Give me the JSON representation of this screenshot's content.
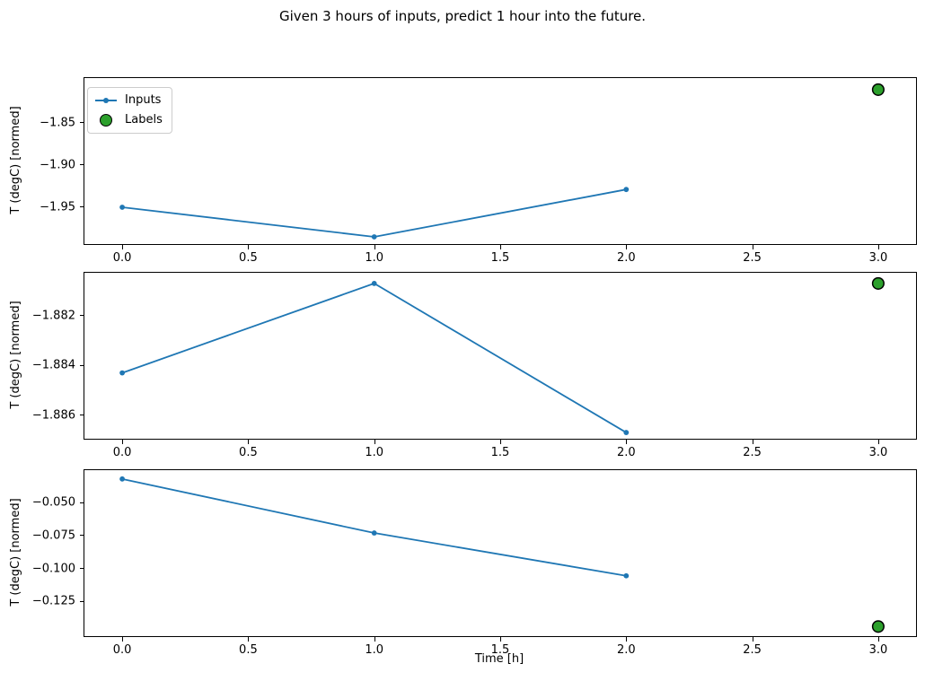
{
  "title": "Given 3 hours of inputs, predict 1 hour into the future.",
  "colors": {
    "inputs_line": "#1f77b4",
    "labels_fill": "#2ca02c",
    "labels_edge": "#000000",
    "spine": "#000000",
    "legend_border": "#cccccc",
    "background": "#ffffff"
  },
  "legend": {
    "items": [
      {
        "label": "Inputs",
        "marker": "line-with-dot",
        "color": "#1f77b4"
      },
      {
        "label": "Labels",
        "marker": "circle",
        "color": "#2ca02c"
      }
    ],
    "position": "upper-left-of-first-subplot"
  },
  "xaxis": {
    "label": "Time [h]",
    "lim": [
      -0.15,
      3.15
    ],
    "ticks": [
      {
        "v": 0.0,
        "label": "0.0"
      },
      {
        "v": 0.5,
        "label": "0.5"
      },
      {
        "v": 1.0,
        "label": "1.0"
      },
      {
        "v": 1.5,
        "label": "1.5"
      },
      {
        "v": 2.0,
        "label": "2.0"
      },
      {
        "v": 2.5,
        "label": "2.5"
      },
      {
        "v": 3.0,
        "label": "3.0"
      }
    ]
  },
  "chart_data": [
    {
      "type": "line",
      "subplot": 1,
      "ylabel": "T (degC) [normed]",
      "ylim": [
        -1.9935,
        -1.7973
      ],
      "yticks": [
        {
          "v": -1.85,
          "label": "−1.85"
        },
        {
          "v": -1.9,
          "label": "−1.90"
        },
        {
          "v": -1.95,
          "label": "−1.95"
        }
      ],
      "series": [
        {
          "name": "Inputs",
          "style": "line-markers",
          "x": [
            0,
            1,
            2
          ],
          "y": [
            -1.95,
            -1.985,
            -1.929
          ]
        },
        {
          "name": "Labels",
          "style": "scatter",
          "x": [
            3
          ],
          "y": [
            -1.811
          ]
        }
      ],
      "grid": false
    },
    {
      "type": "line",
      "subplot": 2,
      "ylabel": "T (degC) [normed]",
      "ylim": [
        -1.88695,
        -1.88027
      ],
      "yticks": [
        {
          "v": -1.882,
          "label": "−1.882"
        },
        {
          "v": -1.884,
          "label": "−1.884"
        },
        {
          "v": -1.886,
          "label": "−1.886"
        }
      ],
      "series": [
        {
          "name": "Inputs",
          "style": "line-markers",
          "x": [
            0,
            1,
            2
          ],
          "y": [
            -1.8843,
            -1.8807,
            -1.8867
          ]
        },
        {
          "name": "Labels",
          "style": "scatter",
          "x": [
            3
          ],
          "y": [
            -1.8807
          ]
        }
      ],
      "grid": false
    },
    {
      "type": "line",
      "subplot": 3,
      "ylabel": "T (degC) [normed]",
      "ylim": [
        -0.1513,
        -0.0253
      ],
      "yticks": [
        {
          "v": -0.05,
          "label": "−0.050"
        },
        {
          "v": -0.075,
          "label": "−0.075"
        },
        {
          "v": -0.1,
          "label": "−0.100"
        },
        {
          "v": -0.125,
          "label": "−0.125"
        }
      ],
      "series": [
        {
          "name": "Inputs",
          "style": "line-markers",
          "x": [
            0,
            1,
            2
          ],
          "y": [
            -0.032,
            -0.073,
            -0.1055
          ]
        },
        {
          "name": "Labels",
          "style": "scatter",
          "x": [
            3
          ],
          "y": [
            -0.144
          ]
        }
      ],
      "grid": false
    }
  ]
}
